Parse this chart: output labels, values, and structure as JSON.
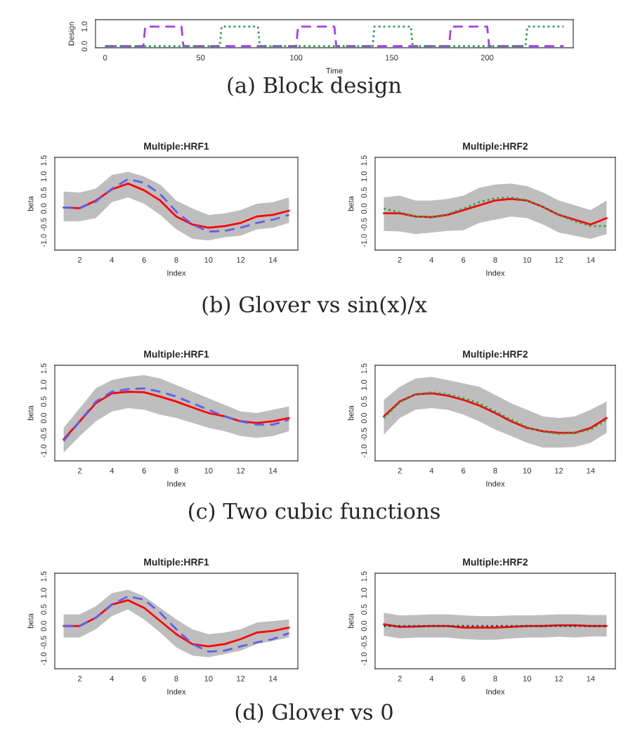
{
  "chart_data": [
    {
      "type": "line",
      "xlabel": "Time",
      "ylabel": "Design",
      "xlim": [
        -5,
        245
      ],
      "ylim": [
        -0.08,
        1.35
      ],
      "xticks": [
        0,
        50,
        100,
        150,
        200
      ],
      "yticks": [
        {
          "value": 0,
          "label": "0.0"
        },
        {
          "value": 1,
          "label": "1.0"
        }
      ],
      "annotations": [
        "(a) Block design"
      ],
      "series": [
        {
          "color": "#a040f0",
          "line_style": "dashed",
          "x": [
            0,
            20,
            21,
            40,
            41,
            100,
            101,
            120,
            121,
            180,
            181,
            200,
            201,
            240
          ],
          "values": [
            0,
            0,
            1,
            1,
            0,
            0,
            1,
            1,
            0,
            0,
            1,
            1,
            0,
            0
          ]
        },
        {
          "color": "#30a050",
          "line_style": "dotted",
          "x": [
            0,
            60,
            61,
            80,
            81,
            140,
            141,
            160,
            161,
            220,
            221,
            240
          ],
          "values": [
            0,
            0,
            1,
            1,
            0,
            0,
            1,
            1,
            0,
            0,
            1,
            1
          ]
        }
      ]
    },
    {
      "type": "line",
      "title": "Multiple:HRF1",
      "xlabel": "Index",
      "ylabel": "beta",
      "x": [
        1,
        2,
        3,
        4,
        5,
        6,
        7,
        8,
        9,
        10,
        11,
        12,
        13,
        14,
        15
      ],
      "xlim": [
        0.45,
        15.55
      ],
      "ylim": [
        -1.3,
        1.6
      ],
      "xticks": [
        2,
        4,
        6,
        8,
        10,
        12,
        14
      ],
      "yticks": [
        {
          "value": -1,
          "label": "-1.0"
        },
        {
          "value": -0.5,
          "label": "-0.5"
        },
        {
          "value": 0,
          "label": "0.0"
        },
        {
          "value": 0.5,
          "label": "0.5"
        },
        {
          "value": 1,
          "label": "1.0"
        },
        {
          "value": 1.5,
          "label": "1.5"
        }
      ],
      "annotations": [
        "(b) Glover vs sin(x)/x"
      ],
      "series": [
        {
          "color": "#ff0000",
          "line_style": "solid",
          "values": [
            0.03,
            0.01,
            0.25,
            0.6,
            0.78,
            0.57,
            0.25,
            -0.25,
            -0.5,
            -0.6,
            -0.55,
            -0.45,
            -0.25,
            -0.2,
            -0.07
          ],
          "upper": [
            0.53,
            0.5,
            0.62,
            1.05,
            1.15,
            1.0,
            0.75,
            0.25,
            0.0,
            -0.2,
            -0.15,
            -0.05,
            0.15,
            0.2,
            0.35
          ],
          "lower": [
            -0.4,
            -0.4,
            -0.3,
            0.2,
            0.35,
            0.15,
            -0.2,
            -0.65,
            -0.95,
            -1.0,
            -0.9,
            -0.85,
            -0.65,
            -0.6,
            -0.45
          ]
        },
        {
          "color": "#6060f0",
          "line_style": "dashed",
          "values": [
            0.03,
            0.02,
            0.22,
            0.62,
            0.92,
            0.8,
            0.45,
            -0.1,
            -0.5,
            -0.72,
            -0.7,
            -0.6,
            -0.45,
            -0.35,
            -0.2
          ]
        }
      ]
    },
    {
      "type": "line",
      "title": "Multiple:HRF2",
      "xlabel": "Index",
      "ylabel": "beta",
      "x": [
        1,
        2,
        3,
        4,
        5,
        6,
        7,
        8,
        9,
        10,
        11,
        12,
        13,
        14,
        15
      ],
      "xlim": [
        0.45,
        15.55
      ],
      "ylim": [
        -1.3,
        1.6
      ],
      "xticks": [
        2,
        4,
        6,
        8,
        10,
        12,
        14
      ],
      "yticks": [
        {
          "value": -1,
          "label": "-1.0"
        },
        {
          "value": -0.5,
          "label": "-0.5"
        },
        {
          "value": 0,
          "label": "0.0"
        },
        {
          "value": 0.5,
          "label": "0.5"
        },
        {
          "value": 1,
          "label": "1.0"
        },
        {
          "value": 1.5,
          "label": "1.5"
        }
      ],
      "series": [
        {
          "color": "#ff0000",
          "line_style": "solid",
          "values": [
            -0.15,
            -0.15,
            -0.25,
            -0.27,
            -0.2,
            -0.05,
            0.1,
            0.25,
            0.3,
            0.25,
            0.05,
            -0.2,
            -0.35,
            -0.5,
            -0.3
          ],
          "upper": [
            0.35,
            0.4,
            0.25,
            0.25,
            0.3,
            0.4,
            0.65,
            0.75,
            0.78,
            0.7,
            0.5,
            0.25,
            0.1,
            -0.05,
            0.25
          ],
          "lower": [
            -0.7,
            -0.72,
            -0.8,
            -0.75,
            -0.7,
            -0.68,
            -0.45,
            -0.35,
            -0.25,
            -0.3,
            -0.5,
            -0.75,
            -0.85,
            -0.95,
            -0.8
          ]
        },
        {
          "color": "#30a050",
          "line_style": "dotted",
          "values": [
            0.0,
            -0.12,
            -0.25,
            -0.27,
            -0.18,
            0.0,
            0.2,
            0.32,
            0.35,
            0.25,
            0.05,
            -0.2,
            -0.4,
            -0.55,
            -0.55
          ]
        }
      ]
    },
    {
      "type": "line",
      "title": "Multiple:HRF1",
      "xlabel": "Index",
      "ylabel": "beta",
      "x": [
        1,
        2,
        3,
        4,
        5,
        6,
        7,
        8,
        9,
        10,
        11,
        12,
        13,
        14,
        15
      ],
      "xlim": [
        0.45,
        15.55
      ],
      "ylim": [
        -1.3,
        1.6
      ],
      "xticks": [
        2,
        4,
        6,
        8,
        10,
        12,
        14
      ],
      "yticks": [
        {
          "value": -1,
          "label": "-1.0"
        },
        {
          "value": -0.5,
          "label": "-0.5"
        },
        {
          "value": 0,
          "label": "0.0"
        },
        {
          "value": 0.5,
          "label": "0.5"
        },
        {
          "value": 1,
          "label": "1.0"
        },
        {
          "value": 1.5,
          "label": "1.5"
        }
      ],
      "annotations": [
        "(c) Two cubic functions"
      ],
      "series": [
        {
          "color": "#ff0000",
          "line_style": "solid",
          "values": [
            -0.65,
            -0.1,
            0.45,
            0.75,
            0.8,
            0.78,
            0.65,
            0.5,
            0.32,
            0.15,
            0.05,
            -0.1,
            -0.15,
            -0.1,
            0.0
          ],
          "upper": [
            -0.3,
            0.3,
            0.9,
            1.15,
            1.25,
            1.3,
            1.2,
            1.0,
            0.8,
            0.6,
            0.4,
            0.2,
            0.15,
            0.25,
            0.35
          ],
          "lower": [
            -1.05,
            -0.55,
            -0.1,
            0.2,
            0.3,
            0.25,
            0.1,
            0.0,
            -0.15,
            -0.3,
            -0.4,
            -0.55,
            -0.6,
            -0.55,
            -0.4
          ]
        },
        {
          "color": "#6060f0",
          "line_style": "dashed",
          "values": [
            -0.7,
            -0.1,
            0.5,
            0.8,
            0.88,
            0.9,
            0.8,
            0.65,
            0.45,
            0.25,
            0.05,
            -0.1,
            -0.2,
            -0.2,
            -0.05
          ]
        }
      ]
    },
    {
      "type": "line",
      "title": "Multiple:HRF2",
      "xlabel": "Index",
      "ylabel": "beta",
      "x": [
        1,
        2,
        3,
        4,
        5,
        6,
        7,
        8,
        9,
        10,
        11,
        12,
        13,
        14,
        15
      ],
      "xlim": [
        0.45,
        15.55
      ],
      "ylim": [
        -1.3,
        1.6
      ],
      "xticks": [
        2,
        4,
        6,
        8,
        10,
        12,
        14
      ],
      "yticks": [
        {
          "value": -1,
          "label": "-1.0"
        },
        {
          "value": -0.5,
          "label": "-0.5"
        },
        {
          "value": 0,
          "label": "0.0"
        },
        {
          "value": 0.5,
          "label": "0.5"
        },
        {
          "value": 1,
          "label": "1.0"
        },
        {
          "value": 1.5,
          "label": "1.5"
        }
      ],
      "series": [
        {
          "color": "#ff0000",
          "line_style": "solid",
          "values": [
            0.05,
            0.5,
            0.72,
            0.75,
            0.68,
            0.55,
            0.38,
            0.15,
            -0.1,
            -0.3,
            -0.4,
            -0.45,
            -0.45,
            -0.3,
            0.0
          ],
          "upper": [
            0.55,
            0.95,
            1.2,
            1.25,
            1.15,
            1.05,
            0.95,
            0.7,
            0.45,
            0.25,
            0.05,
            0.0,
            0.05,
            0.25,
            0.5
          ],
          "lower": [
            -0.5,
            0.0,
            0.25,
            0.3,
            0.25,
            0.1,
            -0.1,
            -0.35,
            -0.55,
            -0.75,
            -0.9,
            -0.9,
            -0.88,
            -0.75,
            -0.45
          ]
        },
        {
          "color": "#30a050",
          "line_style": "dotted",
          "values": [
            0.0,
            0.48,
            0.72,
            0.78,
            0.72,
            0.6,
            0.45,
            0.2,
            -0.05,
            -0.28,
            -0.42,
            -0.48,
            -0.45,
            -0.35,
            -0.05
          ]
        }
      ]
    },
    {
      "type": "line",
      "title": "Multiple:HRF1",
      "xlabel": "Index",
      "ylabel": "beta",
      "x": [
        1,
        2,
        3,
        4,
        5,
        6,
        7,
        8,
        9,
        10,
        11,
        12,
        13,
        14,
        15
      ],
      "xlim": [
        0.45,
        15.55
      ],
      "ylim": [
        -1.3,
        1.6
      ],
      "xticks": [
        2,
        4,
        6,
        8,
        10,
        12,
        14
      ],
      "yticks": [
        {
          "value": -1,
          "label": "-1.0"
        },
        {
          "value": -0.5,
          "label": "-0.5"
        },
        {
          "value": 0,
          "label": "0.0"
        },
        {
          "value": 0.5,
          "label": "0.5"
        },
        {
          "value": 1,
          "label": "1.0"
        },
        {
          "value": 1.5,
          "label": "1.5"
        }
      ],
      "annotations": [
        "(d) Glover vs 0"
      ],
      "series": [
        {
          "color": "#ff0000",
          "line_style": "solid",
          "values": [
            0.0,
            0.0,
            0.25,
            0.65,
            0.78,
            0.55,
            0.15,
            -0.25,
            -0.55,
            -0.62,
            -0.55,
            -0.4,
            -0.2,
            -0.15,
            -0.05
          ],
          "upper": [
            0.35,
            0.35,
            0.6,
            1.0,
            1.1,
            0.9,
            0.55,
            0.2,
            -0.1,
            -0.25,
            -0.2,
            -0.1,
            0.1,
            0.15,
            0.2
          ],
          "lower": [
            -0.35,
            -0.35,
            -0.1,
            0.3,
            0.5,
            0.2,
            -0.2,
            -0.65,
            -0.9,
            -0.95,
            -0.85,
            -0.75,
            -0.55,
            -0.45,
            -0.35
          ]
        },
        {
          "color": "#6060f0",
          "line_style": "dashed",
          "values": [
            0.0,
            0.0,
            0.25,
            0.65,
            0.9,
            0.8,
            0.4,
            -0.1,
            -0.55,
            -0.78,
            -0.75,
            -0.62,
            -0.5,
            -0.4,
            -0.22
          ]
        }
      ]
    },
    {
      "type": "line",
      "title": "Multiple:HRF2",
      "xlabel": "Index",
      "ylabel": "beta",
      "x": [
        1,
        2,
        3,
        4,
        5,
        6,
        7,
        8,
        9,
        10,
        11,
        12,
        13,
        14,
        15
      ],
      "xlim": [
        0.45,
        15.55
      ],
      "ylim": [
        -1.3,
        1.6
      ],
      "xticks": [
        2,
        4,
        6,
        8,
        10,
        12,
        14
      ],
      "yticks": [
        {
          "value": -1,
          "label": "-1.0"
        },
        {
          "value": -0.5,
          "label": "-0.5"
        },
        {
          "value": 0,
          "label": "0.0"
        },
        {
          "value": 0.5,
          "label": "0.5"
        },
        {
          "value": 1,
          "label": "1.0"
        },
        {
          "value": 1.5,
          "label": "1.5"
        }
      ],
      "series": [
        {
          "color": "#ff0000",
          "line_style": "solid",
          "values": [
            0.05,
            -0.03,
            -0.02,
            0.0,
            0.0,
            -0.05,
            -0.05,
            -0.05,
            -0.03,
            0.0,
            0.0,
            0.02,
            0.02,
            0.0,
            0.0
          ],
          "upper": [
            0.4,
            0.32,
            0.33,
            0.35,
            0.35,
            0.32,
            0.3,
            0.3,
            0.32,
            0.32,
            0.33,
            0.35,
            0.35,
            0.33,
            0.33
          ],
          "lower": [
            -0.3,
            -0.38,
            -0.35,
            -0.35,
            -0.35,
            -0.4,
            -0.42,
            -0.42,
            -0.38,
            -0.35,
            -0.35,
            -0.33,
            -0.35,
            -0.32,
            -0.32
          ]
        },
        {
          "color": "#404040",
          "line_style": "dotted",
          "values": [
            0,
            0,
            0,
            0,
            0,
            0,
            0,
            0,
            0,
            0,
            0,
            0,
            0,
            0,
            0
          ]
        }
      ]
    }
  ]
}
